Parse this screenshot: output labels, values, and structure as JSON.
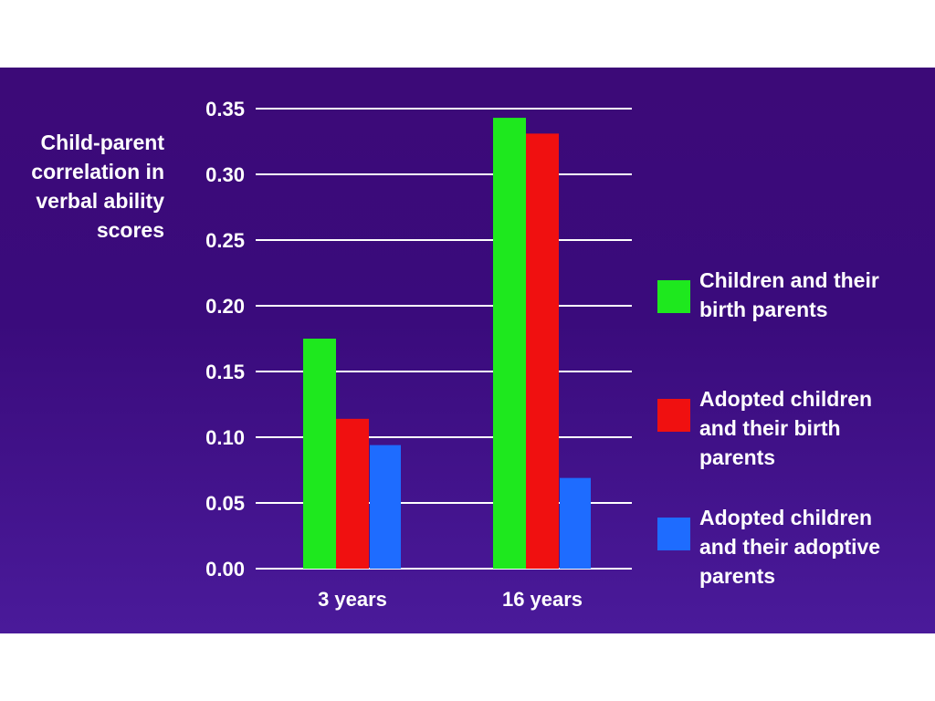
{
  "chart_data": {
    "type": "bar",
    "title": "",
    "xlabel": "",
    "ylabel_lines": [
      "Child-parent",
      "correlation in",
      "verbal ability",
      "scores"
    ],
    "categories": [
      "3 years",
      "16 years"
    ],
    "series": [
      {
        "name": "Children and their birth parents",
        "values": [
          0.175,
          0.343
        ],
        "color": "#1ee81e"
      },
      {
        "name": "Adopted children and their birth parents",
        "values": [
          0.114,
          0.331
        ],
        "color": "#f01010"
      },
      {
        "name": "Adopted children and their adoptive parents",
        "values": [
          0.094,
          0.069
        ],
        "color": "#1e6cff"
      }
    ],
    "ylim": [
      0,
      0.35
    ],
    "yticks": [
      "0.00",
      "0.05",
      "0.10",
      "0.15",
      "0.20",
      "0.25",
      "0.30",
      "0.35"
    ],
    "grid": true,
    "legend_position": "right",
    "legend_lines": [
      [
        "Children and their",
        "birth parents"
      ],
      [
        "Adopted children",
        "and their birth",
        "parents"
      ],
      [
        "Adopted children",
        "and their adoptive",
        "parents"
      ]
    ]
  },
  "colors": {
    "background": "#3c0a78",
    "grid": "#ffffff",
    "text": "#ffffff"
  }
}
